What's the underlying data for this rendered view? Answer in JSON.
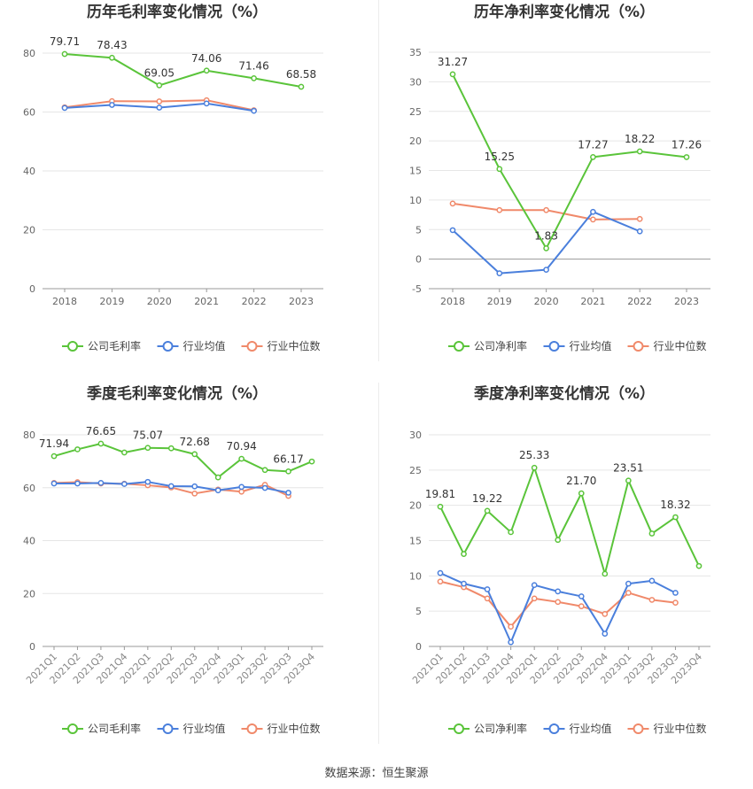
{
  "source": "数据来源：恒生聚源",
  "chart_data": [
    {
      "type": "line",
      "title": "历年毛利率变化情况（%）",
      "categories": [
        "2018",
        "2019",
        "2020",
        "2021",
        "2022",
        "2023"
      ],
      "ylim": [
        0,
        80
      ],
      "yticks": [
        0,
        20,
        40,
        60,
        80
      ],
      "grid": true,
      "legend_position": "bottom",
      "series": [
        {
          "name": "公司毛利率",
          "color": "#5ac43a",
          "values": [
            79.71,
            78.43,
            69.05,
            74.06,
            71.46,
            68.58
          ],
          "labels": [
            "79.71",
            "78.43",
            "69.05",
            "74.06",
            "71.46",
            "68.58"
          ]
        },
        {
          "name": "行业均值",
          "color": "#4a7fdc",
          "values": [
            61.4,
            62.4,
            61.5,
            62.9,
            60.4,
            null
          ]
        },
        {
          "name": "行业中位数",
          "color": "#f0896a",
          "values": [
            61.6,
            63.7,
            63.6,
            64.0,
            60.6,
            null
          ]
        }
      ]
    },
    {
      "type": "line",
      "title": "历年净利率变化情况（%）",
      "categories": [
        "2018",
        "2019",
        "2020",
        "2021",
        "2022",
        "2023"
      ],
      "ylim": [
        -5,
        35
      ],
      "yticks": [
        -5,
        0,
        5,
        10,
        15,
        20,
        25,
        30,
        35
      ],
      "grid": true,
      "legend_position": "bottom",
      "series": [
        {
          "name": "公司净利率",
          "color": "#5ac43a",
          "values": [
            31.27,
            15.25,
            1.83,
            17.27,
            18.22,
            17.26
          ],
          "labels": [
            "31.27",
            "15.25",
            "1.83",
            "17.27",
            "18.22",
            "17.26"
          ]
        },
        {
          "name": "行业均值",
          "color": "#4a7fdc",
          "values": [
            4.9,
            -2.4,
            -1.8,
            8.0,
            4.7,
            null
          ]
        },
        {
          "name": "行业中位数",
          "color": "#f0896a",
          "values": [
            9.4,
            8.3,
            8.3,
            6.7,
            6.8,
            null
          ]
        }
      ]
    },
    {
      "type": "line",
      "title": "季度毛利率变化情况（%）",
      "categories": [
        "2021Q1",
        "2021Q2",
        "2021Q3",
        "2021Q4",
        "2022Q1",
        "2022Q2",
        "2022Q3",
        "2022Q4",
        "2023Q1",
        "2023Q2",
        "2023Q3",
        "2023Q4"
      ],
      "ylim": [
        0,
        80
      ],
      "yticks": [
        0,
        20,
        40,
        60,
        80
      ],
      "grid": true,
      "legend_position": "bottom",
      "series": [
        {
          "name": "公司毛利率",
          "color": "#5ac43a",
          "values": [
            71.94,
            74.5,
            76.65,
            73.3,
            75.07,
            74.9,
            72.68,
            63.9,
            70.94,
            66.7,
            66.17,
            69.9
          ],
          "labels": [
            "71.94",
            "",
            "76.65",
            "",
            "75.07",
            "",
            "72.68",
            "",
            "70.94",
            "",
            "66.17",
            ""
          ]
        },
        {
          "name": "行业均值",
          "color": "#4a7fdc",
          "values": [
            61.6,
            61.6,
            61.8,
            61.4,
            62.2,
            60.6,
            60.5,
            59.0,
            60.3,
            59.9,
            58.1,
            null
          ]
        },
        {
          "name": "行业中位数",
          "color": "#f0896a",
          "values": [
            61.8,
            62.1,
            61.6,
            61.5,
            60.9,
            60.1,
            57.8,
            59.3,
            58.5,
            61.1,
            56.9,
            null
          ]
        }
      ]
    },
    {
      "type": "line",
      "title": "季度净利率变化情况（%）",
      "categories": [
        "2021Q1",
        "2021Q2",
        "2021Q3",
        "2021Q4",
        "2022Q1",
        "2022Q2",
        "2022Q3",
        "2022Q4",
        "2023Q1",
        "2023Q2",
        "2023Q3",
        "2023Q4"
      ],
      "ylim": [
        0,
        30
      ],
      "yticks": [
        0,
        5,
        10,
        15,
        20,
        25,
        30
      ],
      "grid": true,
      "legend_position": "bottom",
      "series": [
        {
          "name": "公司净利率",
          "color": "#5ac43a",
          "values": [
            19.81,
            13.1,
            19.22,
            16.2,
            25.33,
            15.1,
            21.7,
            10.3,
            23.51,
            16.0,
            18.32,
            11.4
          ],
          "labels": [
            "19.81",
            "",
            "19.22",
            "",
            "25.33",
            "",
            "21.70",
            "",
            "23.51",
            "",
            "18.32",
            ""
          ]
        },
        {
          "name": "行业均值",
          "color": "#4a7fdc",
          "values": [
            10.4,
            8.9,
            8.1,
            0.6,
            8.7,
            7.8,
            7.1,
            1.8,
            8.9,
            9.3,
            7.6,
            null
          ]
        },
        {
          "name": "行业中位数",
          "color": "#f0896a",
          "values": [
            9.2,
            8.4,
            6.8,
            2.8,
            6.8,
            6.3,
            5.7,
            4.6,
            7.6,
            6.6,
            6.2,
            null
          ]
        }
      ]
    }
  ]
}
